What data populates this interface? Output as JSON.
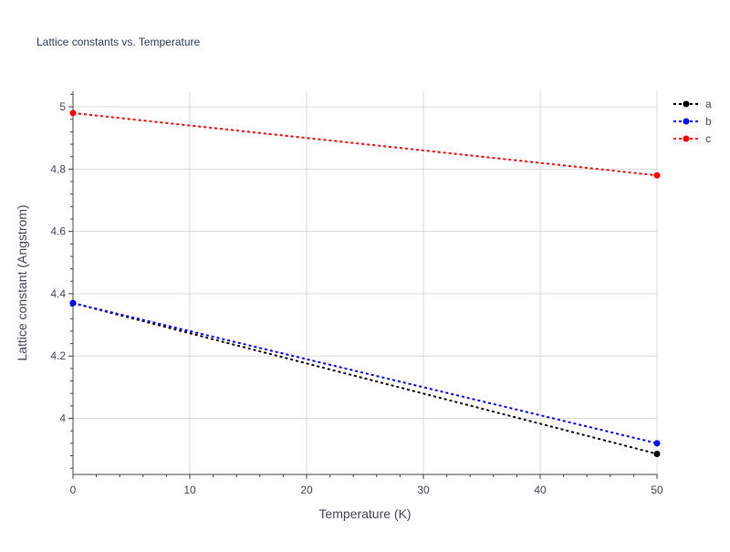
{
  "chart_data": {
    "type": "line",
    "title": "Lattice constants vs. Temperature",
    "xlabel": "Temperature (K)",
    "ylabel": "Lattice constant (Angstrom)",
    "xlim": [
      0,
      50
    ],
    "ylim": [
      3.82,
      5.05
    ],
    "x_ticks": [
      0,
      10,
      20,
      30,
      40,
      50
    ],
    "y_ticks": [
      4,
      4.2,
      4.4,
      4.6,
      4.8,
      5
    ],
    "x_tick_labels": [
      "0",
      "10",
      "20",
      "30",
      "40",
      "50"
    ],
    "y_tick_labels": [
      "4",
      "4.2",
      "4.4",
      "4.6",
      "4.8",
      "5"
    ],
    "grid": true,
    "legend_position": "top-right",
    "series": [
      {
        "name": "a",
        "color": "#000000",
        "x": [
          0,
          50
        ],
        "y": [
          4.37,
          3.886
        ]
      },
      {
        "name": "b",
        "color": "#0000ff",
        "x": [
          0,
          50
        ],
        "y": [
          4.37,
          3.92
        ]
      },
      {
        "name": "c",
        "color": "#ff0000",
        "x": [
          0,
          50
        ],
        "y": [
          4.98,
          4.78
        ]
      }
    ]
  },
  "colors": {
    "background": "#ffffff",
    "grid": "#d9d9d9",
    "axis_text": "#444a5a",
    "title_text": "#2a3f5f"
  }
}
